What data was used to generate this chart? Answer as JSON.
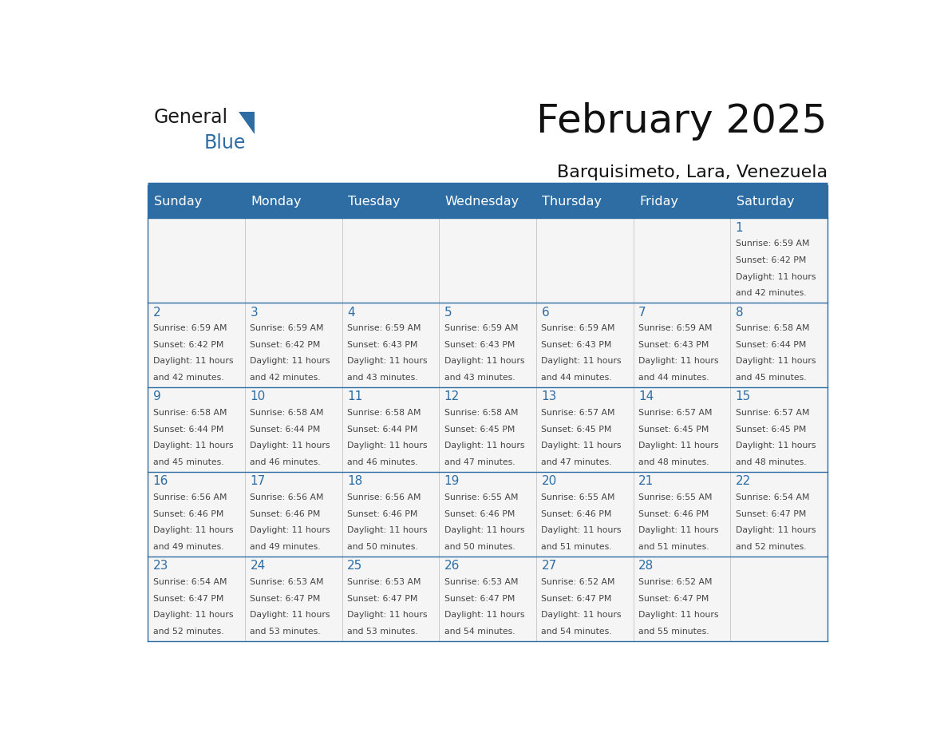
{
  "title": "February 2025",
  "subtitle": "Barquisimeto, Lara, Venezuela",
  "days_of_week": [
    "Sunday",
    "Monday",
    "Tuesday",
    "Wednesday",
    "Thursday",
    "Friday",
    "Saturday"
  ],
  "header_bg_color": "#2E6DA4",
  "header_text_color": "#FFFFFF",
  "cell_bg_color": "#F5F5F5",
  "day_number_color": "#2E6DA4",
  "text_color": "#444444",
  "border_color": "#2E6DA4",
  "calendar_data": [
    [
      null,
      null,
      null,
      null,
      null,
      null,
      1
    ],
    [
      2,
      3,
      4,
      5,
      6,
      7,
      8
    ],
    [
      9,
      10,
      11,
      12,
      13,
      14,
      15
    ],
    [
      16,
      17,
      18,
      19,
      20,
      21,
      22
    ],
    [
      23,
      24,
      25,
      26,
      27,
      28,
      null
    ]
  ],
  "sunrise_data": {
    "1": "6:59 AM",
    "2": "6:59 AM",
    "3": "6:59 AM",
    "4": "6:59 AM",
    "5": "6:59 AM",
    "6": "6:59 AM",
    "7": "6:59 AM",
    "8": "6:58 AM",
    "9": "6:58 AM",
    "10": "6:58 AM",
    "11": "6:58 AM",
    "12": "6:58 AM",
    "13": "6:57 AM",
    "14": "6:57 AM",
    "15": "6:57 AM",
    "16": "6:56 AM",
    "17": "6:56 AM",
    "18": "6:56 AM",
    "19": "6:55 AM",
    "20": "6:55 AM",
    "21": "6:55 AM",
    "22": "6:54 AM",
    "23": "6:54 AM",
    "24": "6:53 AM",
    "25": "6:53 AM",
    "26": "6:53 AM",
    "27": "6:52 AM",
    "28": "6:52 AM"
  },
  "sunset_data": {
    "1": "6:42 PM",
    "2": "6:42 PM",
    "3": "6:42 PM",
    "4": "6:43 PM",
    "5": "6:43 PM",
    "6": "6:43 PM",
    "7": "6:43 PM",
    "8": "6:44 PM",
    "9": "6:44 PM",
    "10": "6:44 PM",
    "11": "6:44 PM",
    "12": "6:45 PM",
    "13": "6:45 PM",
    "14": "6:45 PM",
    "15": "6:45 PM",
    "16": "6:46 PM",
    "17": "6:46 PM",
    "18": "6:46 PM",
    "19": "6:46 PM",
    "20": "6:46 PM",
    "21": "6:46 PM",
    "22": "6:47 PM",
    "23": "6:47 PM",
    "24": "6:47 PM",
    "25": "6:47 PM",
    "26": "6:47 PM",
    "27": "6:47 PM",
    "28": "6:47 PM"
  },
  "daylight_data": {
    "1": "11 hours and 42 minutes.",
    "2": "11 hours and 42 minutes.",
    "3": "11 hours and 42 minutes.",
    "4": "11 hours and 43 minutes.",
    "5": "11 hours and 43 minutes.",
    "6": "11 hours and 44 minutes.",
    "7": "11 hours and 44 minutes.",
    "8": "11 hours and 45 minutes.",
    "9": "11 hours and 45 minutes.",
    "10": "11 hours and 46 minutes.",
    "11": "11 hours and 46 minutes.",
    "12": "11 hours and 47 minutes.",
    "13": "11 hours and 47 minutes.",
    "14": "11 hours and 48 minutes.",
    "15": "11 hours and 48 minutes.",
    "16": "11 hours and 49 minutes.",
    "17": "11 hours and 49 minutes.",
    "18": "11 hours and 50 minutes.",
    "19": "11 hours and 50 minutes.",
    "20": "11 hours and 51 minutes.",
    "21": "11 hours and 51 minutes.",
    "22": "11 hours and 52 minutes.",
    "23": "11 hours and 52 minutes.",
    "24": "11 hours and 53 minutes.",
    "25": "11 hours and 53 minutes.",
    "26": "11 hours and 54 minutes.",
    "27": "11 hours and 54 minutes.",
    "28": "11 hours and 55 minutes."
  },
  "logo_general_color": "#1a1a1a",
  "logo_blue_color": "#2E6DA4",
  "logo_triangle_color": "#2E6DA4"
}
